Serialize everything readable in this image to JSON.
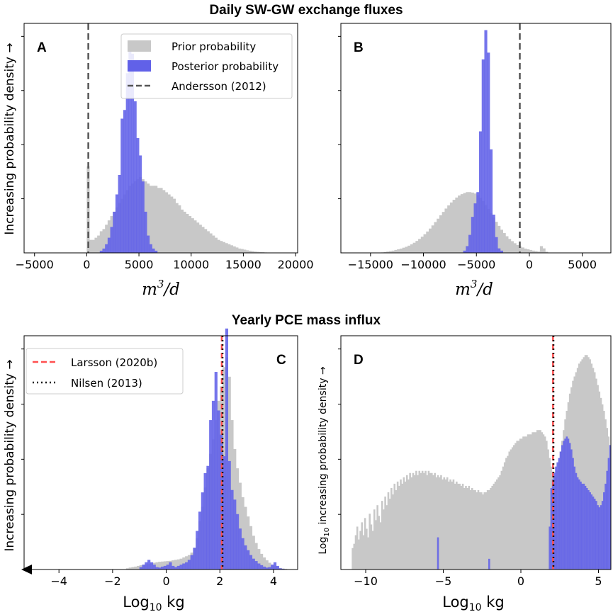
{
  "figure_titles": {
    "top": "Daily SW-GW exchange fluxes",
    "bottom": "Yearly PCE mass influx"
  },
  "colors": {
    "prior": "#c8c8c8",
    "posterior": "#6161e8",
    "andersson": "#555555",
    "larsson": "#ff4f4f",
    "nilsen": "#111111"
  },
  "chart_data": [
    {
      "panel": "A",
      "type": "histogram",
      "title": "",
      "xlabel_main": "m",
      "xlabel_sup": "3",
      "xlabel_tail": "/d",
      "ylabel": "Increasing probability density →",
      "xlim": [
        -6000,
        20200
      ],
      "ylim": [
        0,
        1
      ],
      "xticks": [
        -5000,
        0,
        5000,
        10000,
        15000,
        20000
      ],
      "xtick_labels": [
        "−5000",
        "0",
        "5000",
        "10000",
        "15000",
        "20000"
      ],
      "bin_width": 250,
      "legend_position": "top-right",
      "legend": [
        "Prior probability",
        "Posterior probability",
        "Andersson (2012)"
      ],
      "series": [
        {
          "name": "Prior probability",
          "start": 0,
          "values": [
            0.4,
            0.06,
            0.06,
            0.07,
            0.08,
            0.1,
            0.11,
            0.13,
            0.15,
            0.17,
            0.19,
            0.21,
            0.23,
            0.25,
            0.27,
            0.29,
            0.31,
            0.32,
            0.33,
            0.34,
            0.35,
            0.34,
            0.33,
            0.32,
            0.31,
            0.31,
            0.31,
            0.3,
            0.3,
            0.29,
            0.28,
            0.27,
            0.26,
            0.25,
            0.23,
            0.22,
            0.2,
            0.19,
            0.18,
            0.17,
            0.16,
            0.15,
            0.14,
            0.13,
            0.12,
            0.11,
            0.1,
            0.09,
            0.08,
            0.07,
            0.06,
            0.055,
            0.05,
            0.045,
            0.04,
            0.035,
            0.03,
            0.025,
            0.02,
            0.018,
            0.015,
            0.012,
            0.01,
            0.008,
            0.006,
            0.005,
            0.004,
            0.003,
            0.002,
            0.001
          ]
        },
        {
          "name": "Posterior probability",
          "start": 1250,
          "values": [
            0.01,
            0.02,
            0.04,
            0.07,
            0.12,
            0.19,
            0.27,
            0.36,
            0.62,
            0.66,
            0.83,
            0.98,
            0.92,
            0.7,
            0.53,
            0.45,
            0.33,
            0.19,
            0.08,
            0.04,
            0.02,
            0.01
          ]
        }
      ],
      "vlines": [
        {
          "name": "Andersson (2012)",
          "x": 150,
          "style": "dashed"
        }
      ]
    },
    {
      "panel": "B",
      "type": "histogram",
      "title": "",
      "xlabel_main": "m",
      "xlabel_sup": "3",
      "xlabel_tail": "/d",
      "ylabel": "",
      "xlim": [
        -17800,
        7700
      ],
      "ylim": [
        0,
        1
      ],
      "xticks": [
        -15000,
        -10000,
        -5000,
        0,
        5000
      ],
      "xtick_labels": [
        "−15000",
        "−10000",
        "−5000",
        "0",
        "5000"
      ],
      "bin_width": 250,
      "legend_position": "none",
      "legend": [],
      "series": [
        {
          "name": "Prior probability",
          "start": -14000,
          "values": [
            0.002,
            0.004,
            0.006,
            0.008,
            0.01,
            0.013,
            0.016,
            0.019,
            0.023,
            0.027,
            0.032,
            0.038,
            0.045,
            0.053,
            0.062,
            0.072,
            0.083,
            0.095,
            0.108,
            0.122,
            0.137,
            0.152,
            0.167,
            0.182,
            0.197,
            0.211,
            0.224,
            0.236,
            0.246,
            0.255,
            0.261,
            0.266,
            0.27,
            0.27,
            0.268,
            0.264,
            0.256,
            0.245,
            0.23,
            0.213,
            0.195,
            0.176,
            0.157,
            0.138,
            0.12,
            0.103,
            0.088,
            0.074,
            0.062,
            0.052,
            0.043,
            0.035,
            0.029,
            0.024,
            0.019,
            0.016,
            0.013,
            0.01,
            0.008,
            0.006,
            0.03,
            0.02,
            0.005
          ]
        },
        {
          "name": "Posterior probability",
          "start": -6250,
          "values": [
            0.01,
            0.03,
            0.08,
            0.16,
            0.22,
            0.27,
            0.54,
            0.86,
            0.99,
            0.89,
            0.46,
            0.17,
            0.07,
            0.02,
            0.01
          ]
        }
      ],
      "vlines": [
        {
          "name": "Andersson (2012)",
          "x": -900,
          "style": "dashed"
        }
      ]
    },
    {
      "panel": "C",
      "type": "histogram",
      "title": "",
      "xlabel_main": "Log",
      "xlabel_sub": "10",
      "xlabel_tail": " kg",
      "ylabel": "Increasing probability density →",
      "xlim": [
        -5.3,
        4.9
      ],
      "ylim": [
        0,
        1
      ],
      "xticks": [
        -4,
        -2,
        0,
        2,
        4
      ],
      "xtick_labels": [
        "−4",
        "−2",
        "0",
        "2",
        "4"
      ],
      "bin_width": 0.1,
      "legend_position": "top-left",
      "legend": [
        "Larsson (2020b)",
        "Nilsen (2013)"
      ],
      "series": [
        {
          "name": "Prior probability",
          "start": -1.5,
          "values": [
            0.005,
            0.008,
            0.01,
            0.012,
            0.015,
            0.018,
            0.02,
            0.022,
            0.024,
            0.026,
            0.028,
            0.03,
            0.032,
            0.033,
            0.034,
            0.035,
            0.036,
            0.038,
            0.04,
            0.042,
            0.045,
            0.05,
            0.055,
            0.06,
            0.07,
            0.09,
            0.13,
            0.2,
            0.26,
            0.34,
            0.42,
            0.48,
            0.54,
            0.62,
            0.7,
            0.76,
            0.84,
            0.88,
            0.8,
            0.62,
            0.5,
            0.42,
            0.36,
            0.3,
            0.26,
            0.22,
            0.18,
            0.14,
            0.11,
            0.085,
            0.065,
            0.05,
            0.038,
            0.028,
            0.02,
            0.014,
            0.01,
            0.006,
            0.004,
            0.003
          ]
        },
        {
          "name": "Posterior probability",
          "start": -1.0,
          "values": [
            0.01,
            0.02,
            0.03,
            0.04,
            0.03,
            0.02,
            0.01,
            0.008,
            0.012,
            0.015,
            0.02,
            0.03,
            0.015,
            0.01,
            0.015,
            0.02,
            0.025,
            0.03,
            0.04,
            0.06,
            0.09,
            0.16,
            0.24,
            0.32,
            0.4,
            0.43,
            0.62,
            0.7,
            0.82,
            0.66,
            0.56,
            0.47,
            1.0,
            0.45,
            0.33,
            0.29,
            0.23,
            0.17,
            0.13,
            0.1,
            0.08,
            0.06,
            0.045,
            0.035,
            0.025,
            0.018,
            0.012,
            0.008,
            0.01,
            0.02,
            0.03,
            0.015,
            0.005,
            0.003
          ]
        }
      ],
      "vlines": [
        {
          "name": "Larsson (2020b)",
          "x": 2.07,
          "style": "dashed"
        },
        {
          "name": "Nilsen (2013)",
          "x": 2.1,
          "style": "dotted"
        }
      ]
    },
    {
      "panel": "D",
      "type": "histogram",
      "title": "",
      "xlabel_main": "Log",
      "xlabel_sub": "10",
      "xlabel_tail": " kg",
      "ylabel_pre": "Log",
      "ylabel_sub": "10",
      "ylabel_post": " increasing probability density →",
      "xlim": [
        -11.6,
        5.8
      ],
      "ylim": [
        0,
        1
      ],
      "xticks": [
        -10,
        -5,
        0,
        5
      ],
      "xtick_labels": [
        "−10",
        "−5",
        "0",
        "5"
      ],
      "bin_width": 0.1,
      "legend_position": "none",
      "legend": [],
      "series": [
        {
          "name": "Prior probability",
          "start": -10.9,
          "values": [
            0.1,
            0.12,
            0.16,
            0.2,
            0.14,
            0.18,
            0.22,
            0.16,
            0.24,
            0.19,
            0.15,
            0.26,
            0.21,
            0.18,
            0.28,
            0.23,
            0.3,
            0.25,
            0.22,
            0.32,
            0.28,
            0.34,
            0.3,
            0.36,
            0.33,
            0.38,
            0.35,
            0.4,
            0.37,
            0.41,
            0.39,
            0.42,
            0.4,
            0.43,
            0.41,
            0.44,
            0.42,
            0.45,
            0.43,
            0.45,
            0.44,
            0.46,
            0.44,
            0.46,
            0.45,
            0.46,
            0.45,
            0.46,
            0.44,
            0.46,
            0.45,
            0.45,
            0.44,
            0.45,
            0.43,
            0.44,
            0.43,
            0.44,
            0.42,
            0.43,
            0.42,
            0.43,
            0.41,
            0.42,
            0.41,
            0.42,
            0.4,
            0.41,
            0.4,
            0.4,
            0.39,
            0.4,
            0.38,
            0.39,
            0.38,
            0.39,
            0.37,
            0.38,
            0.37,
            0.37,
            0.36,
            0.37,
            0.36,
            0.36,
            0.35,
            0.36,
            0.36,
            0.37,
            0.37,
            0.38,
            0.39,
            0.4,
            0.41,
            0.42,
            0.43,
            0.44,
            0.46,
            0.48,
            0.5,
            0.52,
            0.53,
            0.55,
            0.56,
            0.57,
            0.58,
            0.59,
            0.6,
            0.6,
            0.61,
            0.61,
            0.62,
            0.62,
            0.62,
            0.63,
            0.63,
            0.63,
            0.64,
            0.64,
            0.64,
            0.65,
            0.65,
            0.65,
            0.64,
            0.63,
            0.62,
            0.6,
            0.56,
            0.52,
            0.48,
            0.44,
            0.42,
            0.43,
            0.46,
            0.5,
            0.55,
            0.6,
            0.65,
            0.7,
            0.74,
            0.78,
            0.82,
            0.85,
            0.88,
            0.9,
            0.92,
            0.94,
            0.96,
            0.97,
            0.98,
            0.99,
            1.0,
            1.0,
            0.99,
            0.98,
            0.96,
            0.94,
            0.92,
            0.89,
            0.86,
            0.83,
            0.8,
            0.77,
            0.74,
            0.7,
            0.66,
            0.62,
            0.58,
            0.53,
            0.48,
            0.43,
            0.38,
            0.33,
            0.27,
            0.22,
            0.16
          ]
        },
        {
          "name": "Posterior probability",
          "start": -5.4,
          "values": [
            0.15,
            0,
            0,
            0,
            0,
            0,
            0,
            0,
            0,
            0,
            0,
            0,
            0,
            0,
            0,
            0,
            0,
            0,
            0,
            0,
            0,
            0,
            0,
            0,
            0,
            0,
            0,
            0,
            0,
            0,
            0,
            0,
            0,
            0.05,
            0,
            0,
            0,
            0,
            0,
            0,
            0,
            0,
            0,
            0,
            0,
            0,
            0,
            0,
            0,
            0,
            0,
            0,
            0,
            0,
            0,
            0,
            0,
            0,
            0,
            0,
            0,
            0,
            0,
            0,
            0,
            0,
            0,
            0,
            0,
            0,
            0,
            0,
            0.2,
            0.38,
            0.42,
            0.45,
            0.48,
            0.5,
            0.52,
            0.55,
            0.58,
            0.6,
            0.61,
            0.62,
            0.61,
            0.59,
            0.56,
            0.52,
            0.48,
            0.45,
            0.43,
            0.42,
            0.41,
            0.4,
            0.4,
            0.39,
            0.38,
            0.37,
            0.36,
            0.35,
            0.34,
            0.33,
            0.32,
            0.3,
            0.29,
            0.3,
            0.32,
            0.36,
            0.4,
            0.46,
            0.52,
            0.58,
            0.63,
            0.68,
            0.72,
            0.76,
            0.8,
            0.84,
            0.87,
            0.9,
            0.93,
            0.95,
            0.97,
            0.98,
            0.99,
            1.0,
            0.98,
            0.96,
            0.94,
            0.92,
            0.9,
            0.87,
            0.84,
            0.81,
            0.78,
            0.74,
            0.71,
            0.68,
            0.65,
            0.62,
            0.59,
            0.56,
            0.53,
            0.5,
            0.47,
            0.44,
            0.41
          ]
        }
      ],
      "vlines": [
        {
          "name": "Larsson (2020b)",
          "x": 2.07,
          "style": "dashed"
        },
        {
          "name": "Nilsen (2013)",
          "x": 2.1,
          "style": "dotted"
        }
      ]
    }
  ]
}
